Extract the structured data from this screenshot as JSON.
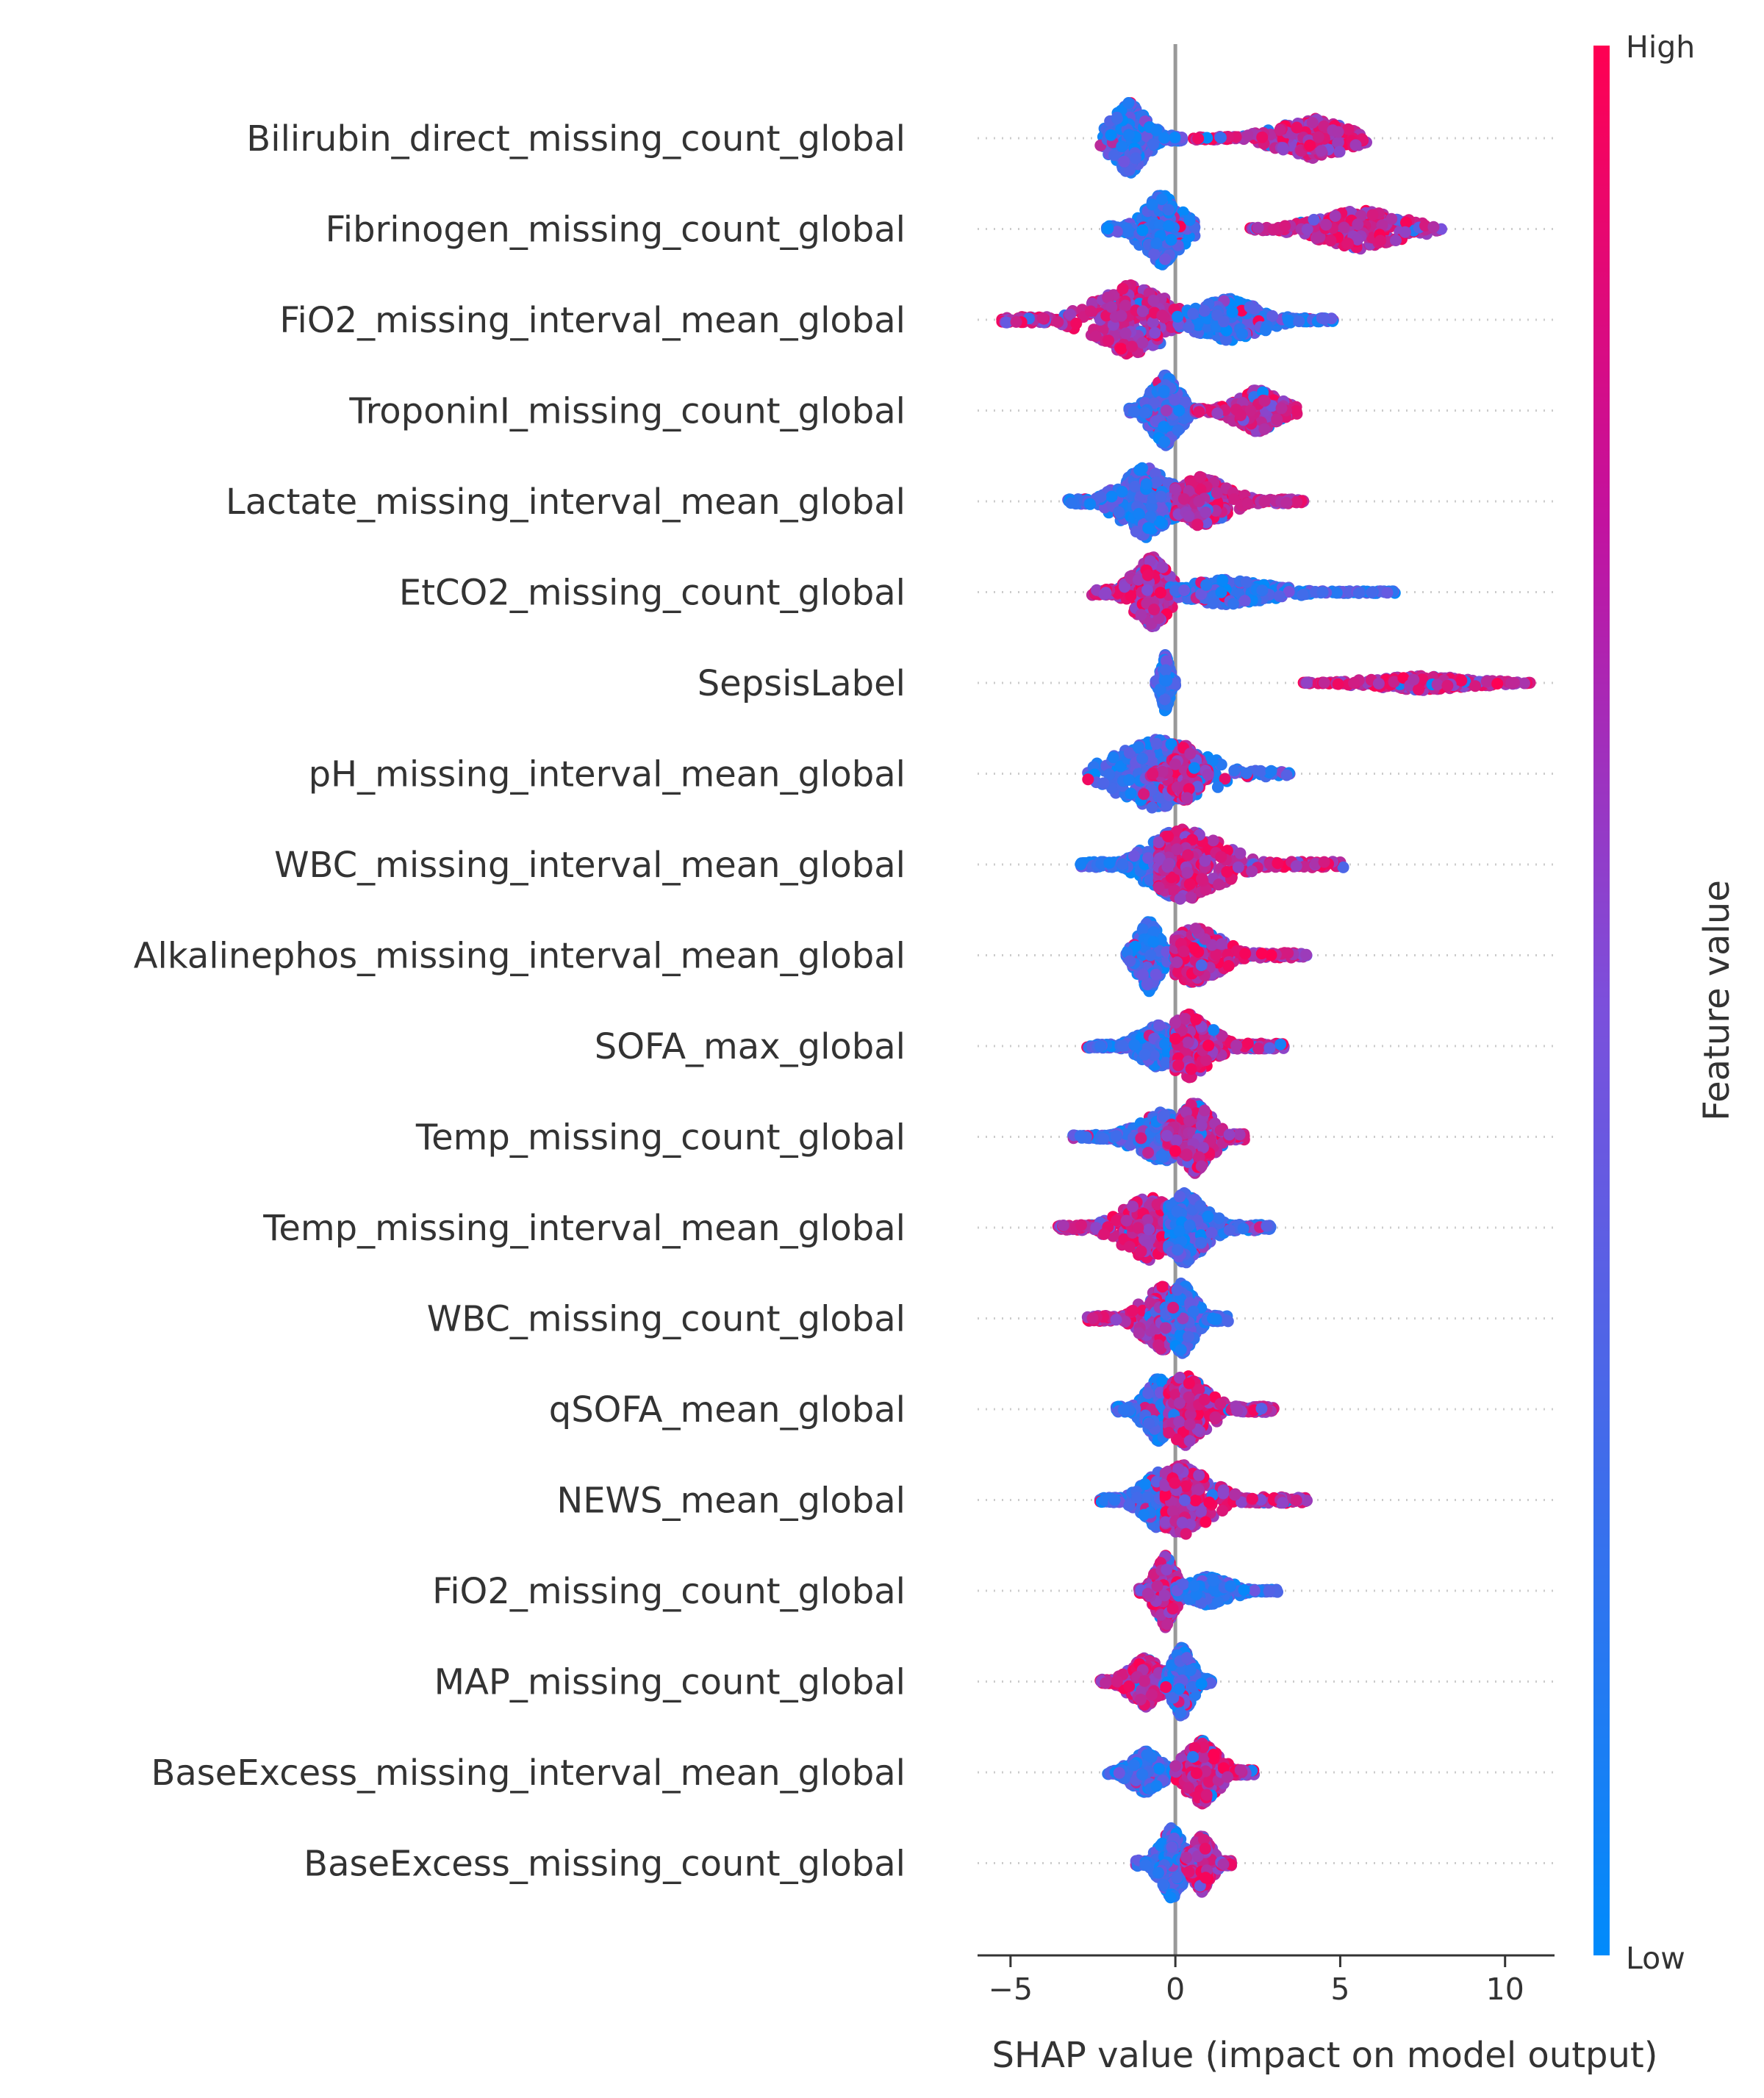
{
  "chart_data": {
    "type": "scatter",
    "subtype": "shap-beeswarm",
    "xlabel": "SHAP value (impact on model output)",
    "xlim": [
      -6,
      11.5
    ],
    "xticks": [
      -5,
      0,
      5,
      10
    ],
    "xtick_labels": [
      "−5",
      "0",
      "5",
      "10"
    ],
    "zero_line": 0,
    "colorbar": {
      "label": "Feature value",
      "high_label": "High",
      "low_label": "Low",
      "low_color": "#008bfb",
      "high_color": "#ff0052"
    },
    "features": [
      {
        "name": "Bilirubin_direct_missing_count_global",
        "groups": [
          {
            "center": -1.4,
            "min": -2.3,
            "max": 0.2,
            "spread": 1.0,
            "color": "low"
          },
          {
            "center": 4.2,
            "min": 0.5,
            "max": 5.8,
            "spread": 0.55,
            "color": "high"
          }
        ]
      },
      {
        "name": "Fibrinogen_missing_count_global",
        "groups": [
          {
            "center": -0.4,
            "min": -2.1,
            "max": 0.6,
            "spread": 1.0,
            "color": "low"
          },
          {
            "center": 5.6,
            "min": 2.2,
            "max": 8.1,
            "spread": 0.55,
            "color": "high"
          }
        ]
      },
      {
        "name": "FiO2_missing_interval_mean_global",
        "groups": [
          {
            "center": -1.3,
            "min": -5.3,
            "max": 0.2,
            "spread": 1.0,
            "color": "high"
          },
          {
            "center": 1.6,
            "min": 0.0,
            "max": 4.8,
            "spread": 0.6,
            "color": "low"
          }
        ]
      },
      {
        "name": "TroponinI_missing_count_global",
        "groups": [
          {
            "center": -0.3,
            "min": -1.4,
            "max": 0.6,
            "spread": 1.0,
            "color": "low"
          },
          {
            "center": 2.5,
            "min": 0.6,
            "max": 3.7,
            "spread": 0.6,
            "color": "high"
          }
        ]
      },
      {
        "name": "Lactate_missing_interval_mean_global",
        "groups": [
          {
            "center": -0.9,
            "min": -3.3,
            "max": 0.3,
            "spread": 1.0,
            "color": "low"
          },
          {
            "center": 0.8,
            "min": 0.0,
            "max": 3.9,
            "spread": 0.7,
            "color": "high"
          }
        ]
      },
      {
        "name": "EtCO2_missing_count_global",
        "groups": [
          {
            "center": -0.7,
            "min": -2.6,
            "max": 0.0,
            "spread": 1.0,
            "color": "high"
          },
          {
            "center": 1.5,
            "min": 0.0,
            "max": 6.7,
            "spread": 0.35,
            "color": "low"
          }
        ]
      },
      {
        "name": "SepsisLabel",
        "groups": [
          {
            "center": -0.3,
            "min": -0.6,
            "max": 0.0,
            "spread": 0.8,
            "color": "low"
          },
          {
            "center": 7.5,
            "min": 3.8,
            "max": 10.8,
            "spread": 0.2,
            "color": "high"
          }
        ]
      },
      {
        "name": "pH_missing_interval_mean_global",
        "groups": [
          {
            "center": -0.5,
            "min": -2.7,
            "max": 3.5,
            "spread": 1.0,
            "color": "low"
          },
          {
            "center": 0.3,
            "min": -0.8,
            "max": 1.0,
            "spread": 0.8,
            "color": "high"
          }
        ]
      },
      {
        "name": "WBC_missing_interval_mean_global",
        "groups": [
          {
            "center": -0.2,
            "min": -2.9,
            "max": 0.5,
            "spread": 0.9,
            "color": "low"
          },
          {
            "center": 0.3,
            "min": -0.5,
            "max": 5.1,
            "spread": 1.0,
            "color": "high"
          }
        ]
      },
      {
        "name": "Alkalinephos_missing_interval_mean_global",
        "groups": [
          {
            "center": -0.8,
            "min": -1.5,
            "max": 0.1,
            "spread": 1.0,
            "color": "low"
          },
          {
            "center": 0.6,
            "min": 0.0,
            "max": 4.0,
            "spread": 0.8,
            "color": "high"
          }
        ]
      },
      {
        "name": "SOFA_max_global",
        "groups": [
          {
            "center": -0.5,
            "min": -2.7,
            "max": 0.2,
            "spread": 0.6,
            "color": "low"
          },
          {
            "center": 0.4,
            "min": 0.0,
            "max": 3.3,
            "spread": 0.9,
            "color": "high"
          }
        ]
      },
      {
        "name": "Temp_missing_count_global",
        "groups": [
          {
            "center": -0.4,
            "min": -3.1,
            "max": 0.5,
            "spread": 0.7,
            "color": "low"
          },
          {
            "center": 0.6,
            "min": -0.3,
            "max": 2.1,
            "spread": 1.0,
            "color": "high"
          }
        ]
      },
      {
        "name": "Temp_missing_interval_mean_global",
        "groups": [
          {
            "center": -0.8,
            "min": -3.6,
            "max": 0.3,
            "spread": 0.9,
            "color": "high"
          },
          {
            "center": 0.3,
            "min": -0.2,
            "max": 2.9,
            "spread": 1.0,
            "color": "low"
          }
        ]
      },
      {
        "name": "WBC_missing_count_global",
        "groups": [
          {
            "center": -0.4,
            "min": -2.7,
            "max": 0.1,
            "spread": 0.9,
            "color": "high"
          },
          {
            "center": 0.2,
            "min": -0.3,
            "max": 1.6,
            "spread": 1.0,
            "color": "low"
          }
        ]
      },
      {
        "name": "qSOFA_mean_global",
        "groups": [
          {
            "center": -0.5,
            "min": -1.8,
            "max": 0.2,
            "spread": 0.9,
            "color": "low"
          },
          {
            "center": 0.3,
            "min": -0.2,
            "max": 3.0,
            "spread": 1.0,
            "color": "high"
          }
        ]
      },
      {
        "name": "NEWS_mean_global",
        "groups": [
          {
            "center": -0.5,
            "min": -2.3,
            "max": 0.2,
            "spread": 0.8,
            "color": "low"
          },
          {
            "center": 0.2,
            "min": -0.3,
            "max": 4.0,
            "spread": 1.0,
            "color": "high"
          }
        ]
      },
      {
        "name": "FiO2_missing_count_global",
        "groups": [
          {
            "center": -0.3,
            "min": -1.1,
            "max": 0.3,
            "spread": 1.0,
            "color": "high"
          },
          {
            "center": 1.0,
            "min": 0.0,
            "max": 3.1,
            "spread": 0.4,
            "color": "low"
          }
        ]
      },
      {
        "name": "MAP_missing_count_global",
        "groups": [
          {
            "center": -0.9,
            "min": -2.3,
            "max": 0.0,
            "spread": 0.7,
            "color": "high"
          },
          {
            "center": 0.2,
            "min": -0.3,
            "max": 1.1,
            "spread": 1.0,
            "color": "low"
          }
        ]
      },
      {
        "name": "BaseExcess_missing_interval_mean_global",
        "groups": [
          {
            "center": -0.9,
            "min": -2.1,
            "max": 0.0,
            "spread": 0.6,
            "color": "low"
          },
          {
            "center": 0.8,
            "min": 0.0,
            "max": 2.4,
            "spread": 0.9,
            "color": "high"
          }
        ]
      },
      {
        "name": "BaseExcess_missing_count_global",
        "groups": [
          {
            "center": -0.1,
            "min": -1.2,
            "max": 0.5,
            "spread": 1.0,
            "color": "low"
          },
          {
            "center": 0.8,
            "min": 0.3,
            "max": 1.7,
            "spread": 0.8,
            "color": "high"
          }
        ]
      }
    ]
  }
}
